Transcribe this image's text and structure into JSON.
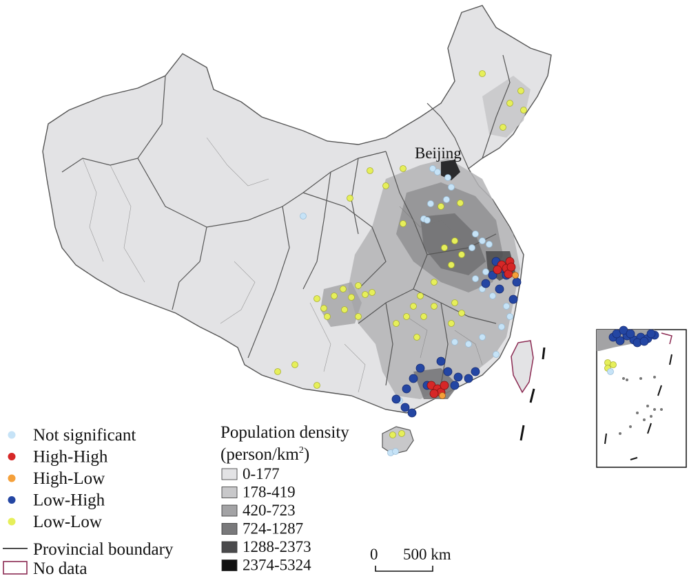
{
  "map": {
    "city_label": "Beijing"
  },
  "lisa_legend": {
    "items": [
      {
        "label": "Not significant",
        "color": "#c6e3f7"
      },
      {
        "label": "High-High",
        "color": "#d62727"
      },
      {
        "label": "High-Low",
        "color": "#f5a03a"
      },
      {
        "label": "Low-High",
        "color": "#2446a3"
      },
      {
        "label": "Low-Low",
        "color": "#e6ef5a"
      }
    ],
    "boundary_label": "Provincial boundary",
    "nodata_label": "No data",
    "nodata_color": "#8b2a52"
  },
  "density_legend": {
    "title_line1": "Population density",
    "title_line2_prefix": "(person/km",
    "title_line2_sup": "2",
    "title_line2_suffix": ")",
    "classes": [
      {
        "label": "0-177",
        "color": "#e3e3e5"
      },
      {
        "label": "178-419",
        "color": "#c8c8ca"
      },
      {
        "label": "420-723",
        "color": "#a3a3a5"
      },
      {
        "label": "724-1287",
        "color": "#79797b"
      },
      {
        "label": "1288-2373",
        "color": "#4a4a4c"
      },
      {
        "label": "2374-5324",
        "color": "#111111"
      }
    ]
  },
  "scale_bar": {
    "start": "0",
    "end": "500 km"
  }
}
